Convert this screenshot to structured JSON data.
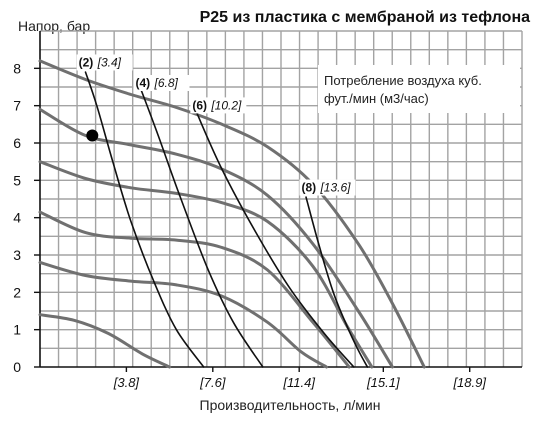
{
  "chart_data": {
    "type": "line",
    "title": "P25 из пластика с мембраной из тефлона",
    "ylabel": "Напор, бар",
    "xlabel": "Производительность, л/мин",
    "xlim": [
      0,
      21.2
    ],
    "ylim": [
      0,
      9
    ],
    "y_ticks": [
      0,
      1,
      2,
      3,
      4,
      5,
      6,
      7,
      8
    ],
    "x_ticks": [
      {
        "value": 3.8,
        "label": "[3.8]"
      },
      {
        "value": 7.6,
        "label": "[7.6]"
      },
      {
        "value": 11.4,
        "label": "[11.4]"
      },
      {
        "value": 15.1,
        "label": "[15.1]"
      },
      {
        "value": 18.9,
        "label": "[18.9]"
      }
    ],
    "grid": true,
    "note": [
      "Потребление воздуха куб.",
      "фут./мин (м3/час)"
    ],
    "pressure_curves": [
      {
        "x": [
          0,
          2,
          4,
          6,
          8,
          10,
          12,
          14,
          15.5,
          16.9
        ],
        "y": [
          8.2,
          7.7,
          7.3,
          6.95,
          6.5,
          5.9,
          4.9,
          3.3,
          1.7,
          0
        ]
      },
      {
        "x": [
          0,
          2,
          4,
          6,
          8,
          10,
          12,
          14,
          15.5
        ],
        "y": [
          6.9,
          6.2,
          5.95,
          5.7,
          5.3,
          4.6,
          3.3,
          1.5,
          0
        ]
      },
      {
        "x": [
          0,
          2,
          4,
          6,
          8,
          10,
          12,
          13.5,
          14.6
        ],
        "y": [
          5.5,
          5.05,
          4.8,
          4.65,
          4.4,
          3.9,
          2.7,
          1.1,
          0
        ]
      },
      {
        "x": [
          0,
          2,
          4,
          6,
          8,
          10,
          12,
          13.6
        ],
        "y": [
          4.15,
          3.6,
          3.45,
          3.4,
          3.2,
          2.6,
          1.2,
          0
        ]
      },
      {
        "x": [
          0,
          2,
          4,
          6,
          8,
          10,
          11.5,
          12.6
        ],
        "y": [
          2.8,
          2.45,
          2.3,
          2.2,
          1.9,
          1.2,
          0.4,
          0
        ]
      },
      {
        "x": [
          0,
          1.5,
          3,
          4.5,
          5.7
        ],
        "y": [
          1.4,
          1.25,
          0.9,
          0.35,
          0
        ]
      }
    ],
    "air_curves": [
      {
        "label_bold": "(2)",
        "label_ital": "[3.4]",
        "label_at": [
          1.7,
          8.05
        ],
        "x": [
          2.0,
          2.5,
          3.2,
          4.0,
          5.0,
          6.0,
          7.2
        ],
        "y": [
          7.9,
          7.0,
          5.5,
          3.9,
          2.3,
          1.0,
          0
        ]
      },
      {
        "label_bold": "(4)",
        "label_ital": "[6.8]",
        "label_at": [
          4.2,
          7.5
        ],
        "x": [
          4.4,
          5.2,
          6.2,
          7.4,
          8.5,
          9.8
        ],
        "y": [
          7.5,
          6.2,
          4.5,
          2.6,
          1.2,
          0
        ]
      },
      {
        "label_bold": "(6)",
        "label_ital": "[10.2]",
        "label_at": [
          6.7,
          6.9
        ],
        "x": [
          6.9,
          8.0,
          9.5,
          11.0,
          12.5,
          13.8
        ],
        "y": [
          6.8,
          5.3,
          3.6,
          2.1,
          0.9,
          0
        ]
      },
      {
        "label_bold": "(8)",
        "label_ital": "[13.6]",
        "label_at": [
          11.5,
          4.7
        ],
        "x": [
          11.7,
          12.3,
          12.9,
          13.5,
          14.0,
          14.4
        ],
        "y": [
          4.55,
          3.2,
          2.0,
          1.1,
          0.45,
          0
        ]
      }
    ],
    "marker_point": {
      "x": 2.3,
      "y": 6.2
    }
  }
}
